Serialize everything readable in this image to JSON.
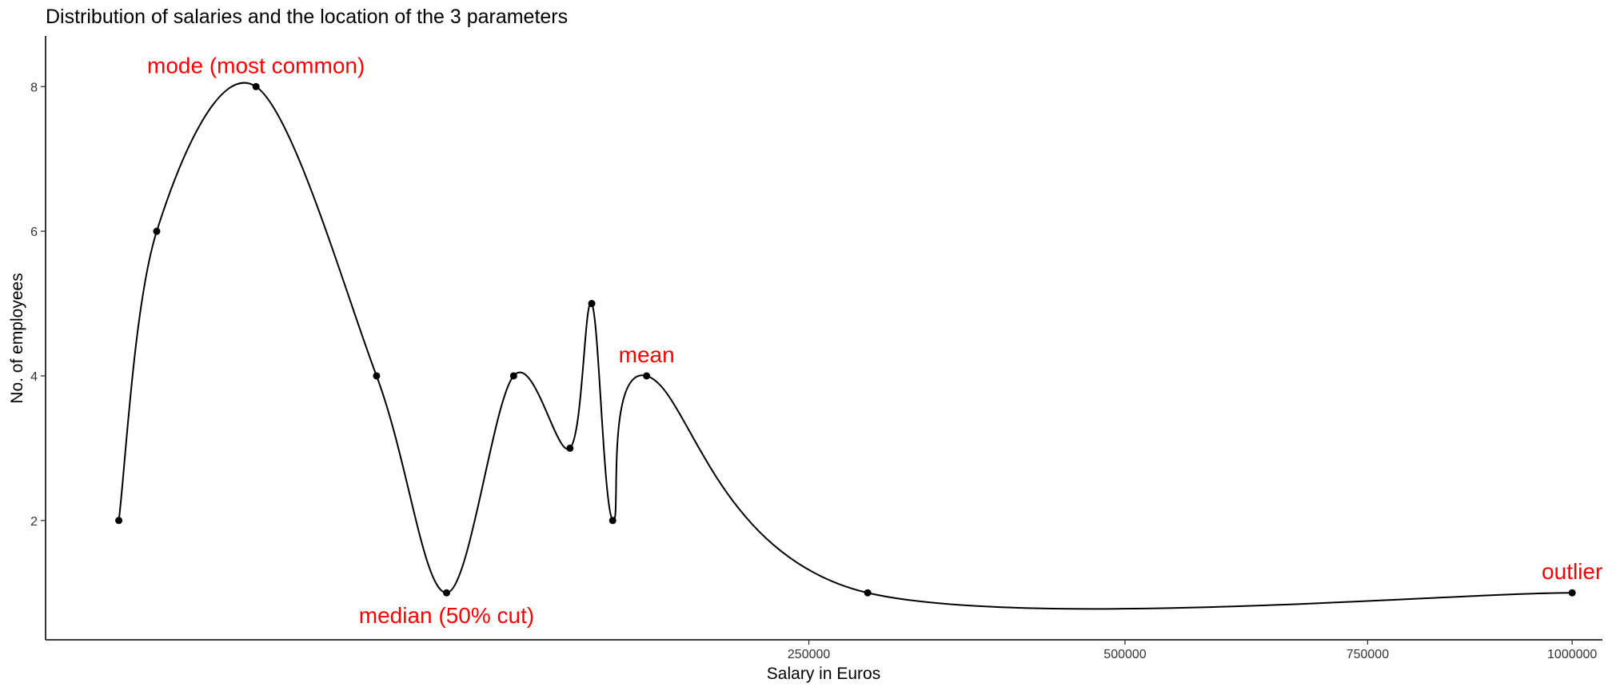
{
  "chart_data": {
    "type": "line",
    "title": "Distribution of salaries and the location of the 3 parameters",
    "xlabel": "Salary in Euros",
    "ylabel": "No. of employees",
    "x_scale": "sqrt",
    "xlim": [
      0,
      1040000
    ],
    "ylim": [
      0.35,
      8.7
    ],
    "x_ticks": [
      250000,
      500000,
      750000,
      1000000
    ],
    "x_tick_labels": [
      "250000",
      "500000",
      "750000",
      "1000000"
    ],
    "y_ticks": [
      2,
      4,
      6,
      8
    ],
    "y_tick_labels": [
      "2",
      "4",
      "6",
      "8"
    ],
    "grid": false,
    "series": [
      {
        "x": [
          2300,
          5300,
          19000,
          47000,
          69000,
          94000,
          118000,
          128000,
          138000,
          155000,
          290000,
          1000000
        ],
        "y": [
          2,
          6,
          8,
          4,
          1,
          4,
          3,
          5,
          2,
          4,
          1,
          1
        ]
      }
    ],
    "annotations": [
      {
        "text": "mode (most common)",
        "x": 19000,
        "y": 8,
        "position": "above"
      },
      {
        "text": "median (50% cut)",
        "x": 69000,
        "y": 1,
        "position": "below"
      },
      {
        "text": "mean",
        "x": 155000,
        "y": 4,
        "position": "above"
      },
      {
        "text": "outlier",
        "x": 1000000,
        "y": 1,
        "position": "above"
      }
    ],
    "colors": {
      "line": "#000000",
      "points": "#000000",
      "annotations": "#ff0000",
      "axis": "#000000"
    }
  }
}
